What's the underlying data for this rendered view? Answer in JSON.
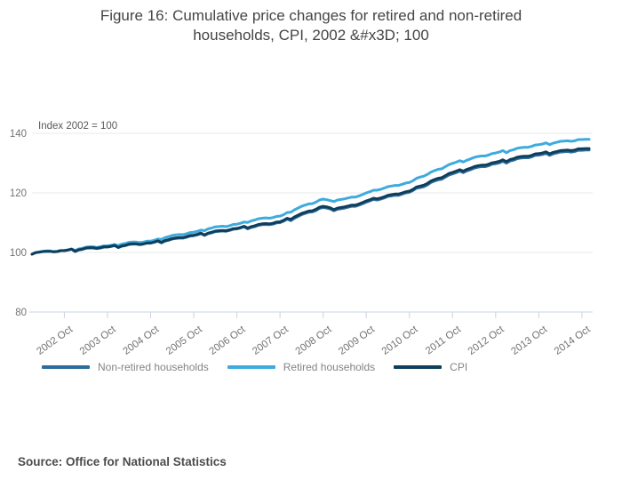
{
  "title": "Figure 16: Cumulative price changes for retired and non-retired households, CPI, 2002 &#x3D; 100",
  "source": "Source: Office for National Statistics",
  "chart_data": {
    "type": "line",
    "title": "Figure 16: Cumulative price changes for retired and non-retired households, CPI, 2002 = 100",
    "annotation": "Index 2002 = 100",
    "x_unit": "month",
    "x_range": [
      "2002 Jan",
      "2014 Dec"
    ],
    "x_tick_labels": [
      "2002 Oct",
      "2003 Oct",
      "2004 Oct",
      "2005 Oct",
      "2006 Oct",
      "2007 Oct",
      "2008 Oct",
      "2009 Oct",
      "2010 Oct",
      "2011 Oct",
      "2012 Oct",
      "2013 Oct",
      "2014 Oct"
    ],
    "x_first_tick_month_index": 9,
    "x_tick_interval_months": 12,
    "yticks": [
      80,
      100,
      120,
      140
    ],
    "ylim": [
      80,
      140
    ],
    "grid": true,
    "legend_position": "bottom-left",
    "colors": {
      "grid": "#e9e9e9",
      "axis": "#c8d4e3",
      "axis_label": "#737373",
      "annotation": "#595959",
      "legend_text": "#848484",
      "title_text": "#454545"
    },
    "series": [
      {
        "name": "Non-retired households",
        "color": "#2d6d9b",
        "values": [
          99.4,
          99.9,
          100.1,
          100.3,
          100.4,
          100.4,
          100.2,
          100.3,
          100.6,
          100.6,
          100.8,
          101.1,
          100.3,
          100.8,
          101.0,
          101.4,
          101.5,
          101.5,
          101.3,
          101.5,
          101.8,
          101.8,
          102.0,
          102.3,
          101.6,
          102.1,
          102.3,
          102.7,
          102.8,
          102.8,
          102.6,
          102.8,
          103.1,
          103.1,
          103.4,
          103.8,
          103.2,
          103.8,
          104.1,
          104.5,
          104.7,
          104.8,
          104.8,
          105.1,
          105.5,
          105.6,
          105.9,
          106.3,
          105.7,
          106.3,
          106.6,
          107.0,
          107.1,
          107.2,
          107.1,
          107.4,
          107.8,
          107.9,
          108.2,
          108.6,
          107.9,
          108.4,
          108.7,
          109.1,
          109.3,
          109.4,
          109.3,
          109.5,
          109.9,
          110.0,
          110.5,
          111.2,
          110.7,
          111.5,
          112.1,
          112.7,
          113.1,
          113.5,
          113.6,
          114.1,
          114.8,
          115.1,
          114.9,
          114.6,
          114.0,
          114.5,
          114.7,
          114.9,
          115.2,
          115.5,
          115.5,
          115.9,
          116.4,
          116.9,
          117.3,
          117.8,
          117.6,
          117.9,
          118.3,
          118.8,
          119.0,
          119.2,
          119.2,
          119.6,
          120.0,
          120.2,
          120.8,
          121.6,
          121.8,
          122.1,
          122.7,
          123.5,
          124.0,
          124.4,
          124.6,
          125.3,
          126.0,
          126.4,
          126.8,
          127.3,
          126.8,
          127.4,
          127.8,
          128.3,
          128.6,
          128.8,
          128.8,
          129.1,
          129.6,
          129.8,
          130.1,
          130.6,
          130.0,
          130.7,
          131.0,
          131.5,
          131.7,
          131.8,
          131.8,
          132.1,
          132.6,
          132.7,
          132.9,
          133.3,
          132.6,
          133.1,
          133.4,
          133.7,
          133.8,
          133.9,
          133.7,
          133.9,
          134.3,
          134.3,
          134.4,
          134.4
        ]
      },
      {
        "name": "Retired households",
        "color": "#3dabde",
        "values": [
          99.5,
          100.0,
          100.2,
          100.4,
          100.5,
          100.5,
          100.3,
          100.4,
          100.7,
          100.7,
          100.9,
          101.2,
          100.7,
          101.2,
          101.4,
          101.8,
          101.9,
          101.9,
          101.7,
          101.9,
          102.2,
          102.2,
          102.4,
          102.7,
          102.3,
          102.8,
          103.0,
          103.4,
          103.5,
          103.5,
          103.3,
          103.5,
          103.8,
          103.8,
          104.1,
          104.5,
          104.4,
          105.0,
          105.3,
          105.7,
          105.9,
          106.0,
          106.0,
          106.3,
          106.7,
          106.8,
          107.1,
          107.5,
          107.3,
          107.9,
          108.2,
          108.6,
          108.7,
          108.8,
          108.7,
          109.0,
          109.4,
          109.5,
          109.8,
          110.2,
          110.1,
          110.6,
          110.9,
          111.3,
          111.5,
          111.6,
          111.5,
          111.7,
          112.1,
          112.2,
          112.7,
          113.4,
          113.5,
          114.3,
          114.9,
          115.5,
          115.9,
          116.3,
          116.4,
          116.9,
          117.6,
          117.9,
          117.7,
          117.4,
          117.1,
          117.6,
          117.8,
          118.0,
          118.3,
          118.6,
          118.6,
          119.0,
          119.5,
          120.0,
          120.4,
          120.9,
          120.9,
          121.2,
          121.6,
          122.1,
          122.3,
          122.5,
          122.5,
          122.9,
          123.3,
          123.5,
          124.1,
          124.9,
          125.3,
          125.6,
          126.2,
          127.0,
          127.5,
          127.9,
          128.1,
          128.8,
          129.5,
          129.9,
          130.3,
          130.8,
          130.4,
          131.0,
          131.4,
          131.9,
          132.2,
          132.4,
          132.4,
          132.7,
          133.2,
          133.4,
          133.7,
          134.2,
          133.5,
          134.2,
          134.5,
          135.0,
          135.2,
          135.3,
          135.3,
          135.6,
          136.1,
          136.2,
          136.4,
          136.8,
          136.2,
          136.7,
          137.0,
          137.3,
          137.4,
          137.5,
          137.3,
          137.5,
          137.9,
          137.9,
          138.0,
          138.0
        ]
      },
      {
        "name": "CPI",
        "color": "#0e3e5c",
        "values": [
          99.4,
          99.9,
          100.1,
          100.3,
          100.4,
          100.4,
          100.2,
          100.3,
          100.6,
          100.6,
          100.8,
          101.1,
          100.4,
          100.9,
          101.1,
          101.5,
          101.6,
          101.6,
          101.4,
          101.6,
          101.9,
          101.9,
          102.1,
          102.4,
          101.7,
          102.2,
          102.4,
          102.8,
          102.9,
          102.9,
          102.7,
          102.9,
          103.2,
          103.2,
          103.5,
          103.9,
          103.4,
          104.0,
          104.3,
          104.7,
          104.9,
          105.0,
          105.0,
          105.3,
          105.7,
          105.8,
          106.1,
          106.5,
          105.9,
          106.5,
          106.8,
          107.2,
          107.3,
          107.4,
          107.3,
          107.6,
          108.0,
          108.1,
          108.4,
          108.8,
          108.2,
          108.7,
          109.0,
          109.4,
          109.6,
          109.7,
          109.6,
          109.8,
          110.2,
          110.3,
          110.8,
          111.5,
          111.1,
          111.9,
          112.5,
          113.1,
          113.5,
          113.9,
          114.0,
          114.5,
          115.2,
          115.5,
          115.3,
          115.0,
          114.4,
          114.9,
          115.1,
          115.3,
          115.6,
          115.9,
          115.9,
          116.3,
          116.8,
          117.3,
          117.7,
          118.2,
          118.0,
          118.3,
          118.7,
          119.2,
          119.4,
          119.6,
          119.6,
          120.0,
          120.4,
          120.6,
          121.2,
          122.0,
          122.3,
          122.6,
          123.2,
          124.0,
          124.5,
          124.9,
          125.1,
          125.8,
          126.5,
          126.9,
          127.3,
          127.8,
          127.3,
          127.9,
          128.3,
          128.8,
          129.1,
          129.3,
          129.3,
          129.6,
          130.1,
          130.3,
          130.6,
          131.1,
          130.5,
          131.2,
          131.5,
          132.0,
          132.2,
          132.3,
          132.3,
          132.6,
          133.1,
          133.2,
          133.4,
          133.8,
          133.1,
          133.6,
          133.9,
          134.2,
          134.3,
          134.4,
          134.2,
          134.4,
          134.8,
          134.8,
          134.9,
          134.9
        ]
      }
    ]
  }
}
